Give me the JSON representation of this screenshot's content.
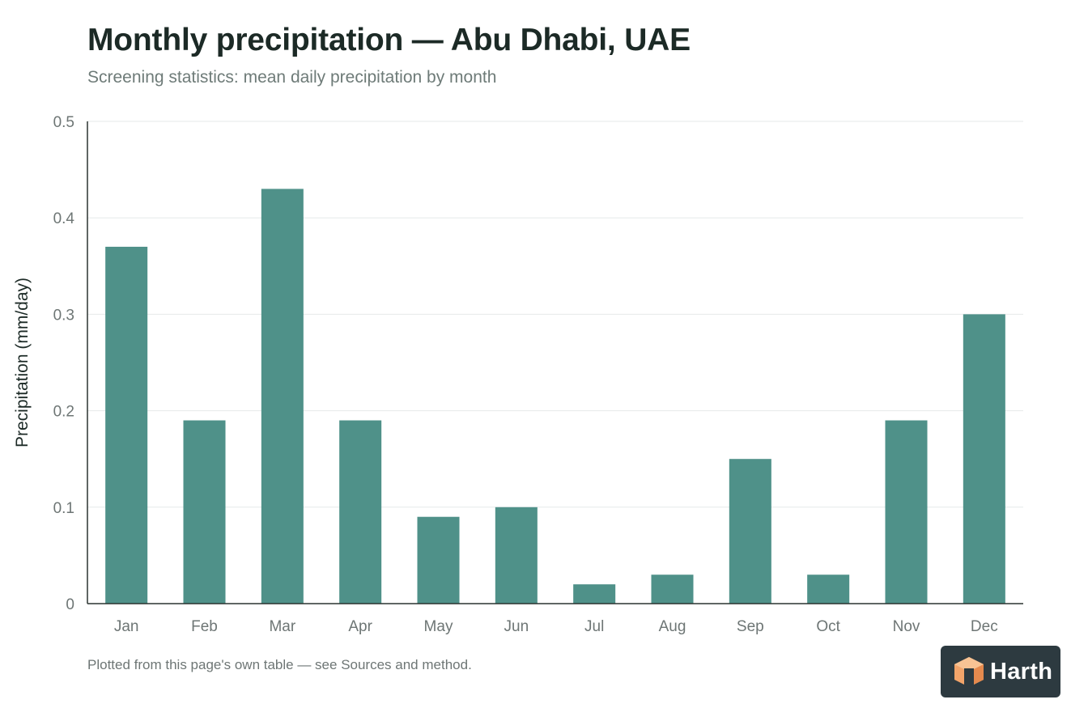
{
  "page": {
    "title": "Monthly precipitation — Abu Dhabi, UAE",
    "subtitle": "Screening statistics: mean daily precipitation by month",
    "footnote": "Plotted from this page's own table — see Sources and method.",
    "logo_text": "Harth"
  },
  "colors": {
    "bar": "#4f9189",
    "grid": "#e6eaea",
    "axis": "#2b3330",
    "logo_bg": "#2d3a40",
    "logo_mark": "#f2a46a"
  },
  "chart_data": {
    "type": "bar",
    "categories": [
      "Jan",
      "Feb",
      "Mar",
      "Apr",
      "May",
      "Jun",
      "Jul",
      "Aug",
      "Sep",
      "Oct",
      "Nov",
      "Dec"
    ],
    "values": [
      0.37,
      0.19,
      0.43,
      0.19,
      0.09,
      0.1,
      0.02,
      0.03,
      0.15,
      0.03,
      0.19,
      0.3
    ],
    "ylabel": "Precipitation (mm/day)",
    "xlabel": "",
    "ylim": [
      0,
      0.5
    ],
    "yticks": [
      0,
      0.1,
      0.2,
      0.3,
      0.4,
      0.5
    ],
    "ytick_labels": [
      "0",
      "0.1",
      "0.2",
      "0.3",
      "0.4",
      "0.5"
    ],
    "grid": true,
    "legend": "none"
  }
}
